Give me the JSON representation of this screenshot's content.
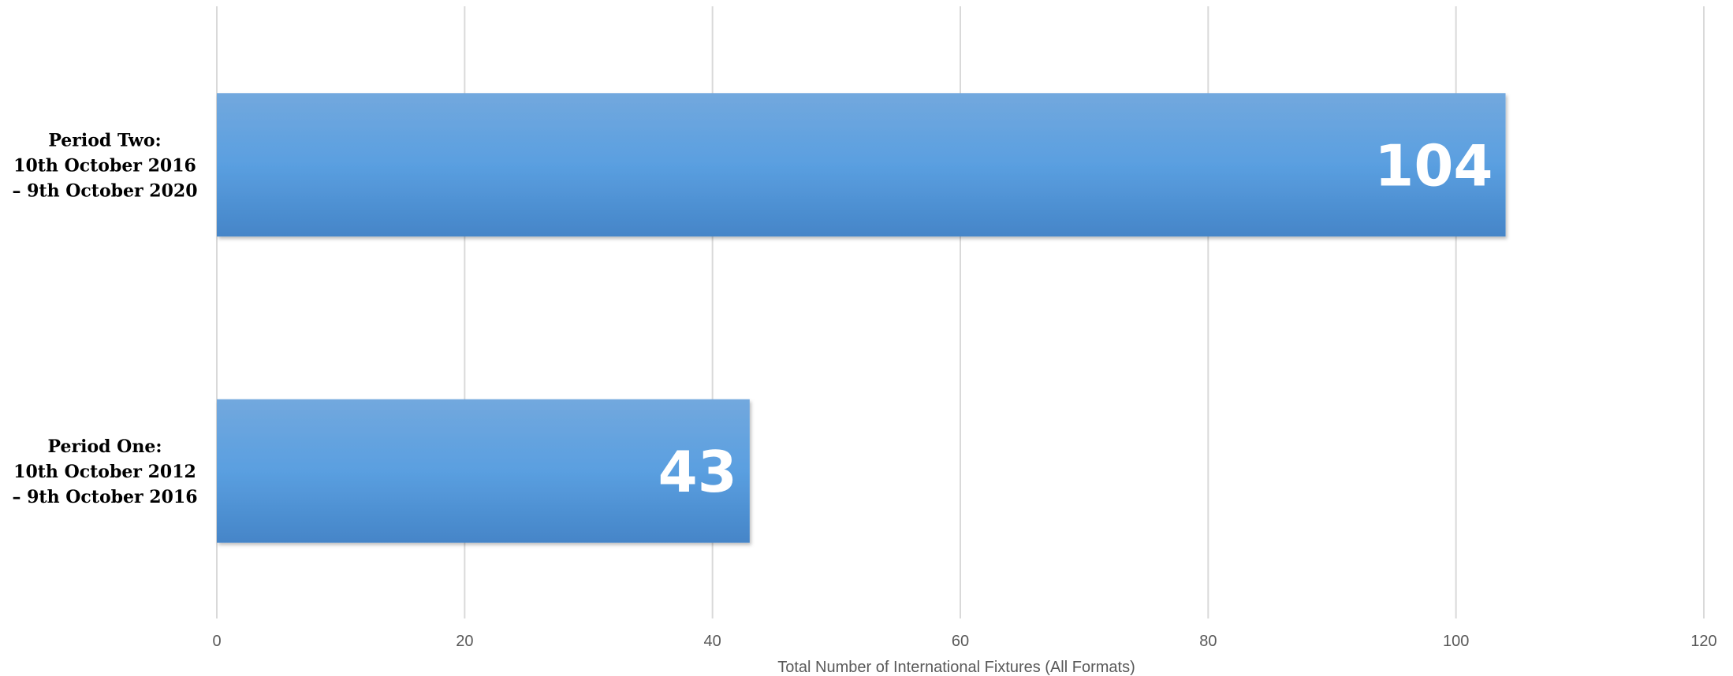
{
  "chart_data": {
    "type": "bar",
    "orientation": "horizontal",
    "categories": [
      [
        "Period Two:",
        "10th October 2016",
        "– 9th October 2020"
      ],
      [
        "Period One:",
        "10th October 2012",
        "– 9th October 2016"
      ]
    ],
    "values": [
      104,
      43
    ],
    "data_labels": [
      "104",
      "43"
    ],
    "xlabel": "Total Number of International Fixtures (All Formats)",
    "xlim": [
      0,
      120
    ],
    "xticks": [
      0,
      20,
      40,
      60,
      80,
      100,
      120
    ],
    "grid": true,
    "legend": "none",
    "bar_color_top": "#72a8de",
    "bar_color_mid": "#5a9fe0",
    "bar_color_bottom": "#4585c8"
  }
}
